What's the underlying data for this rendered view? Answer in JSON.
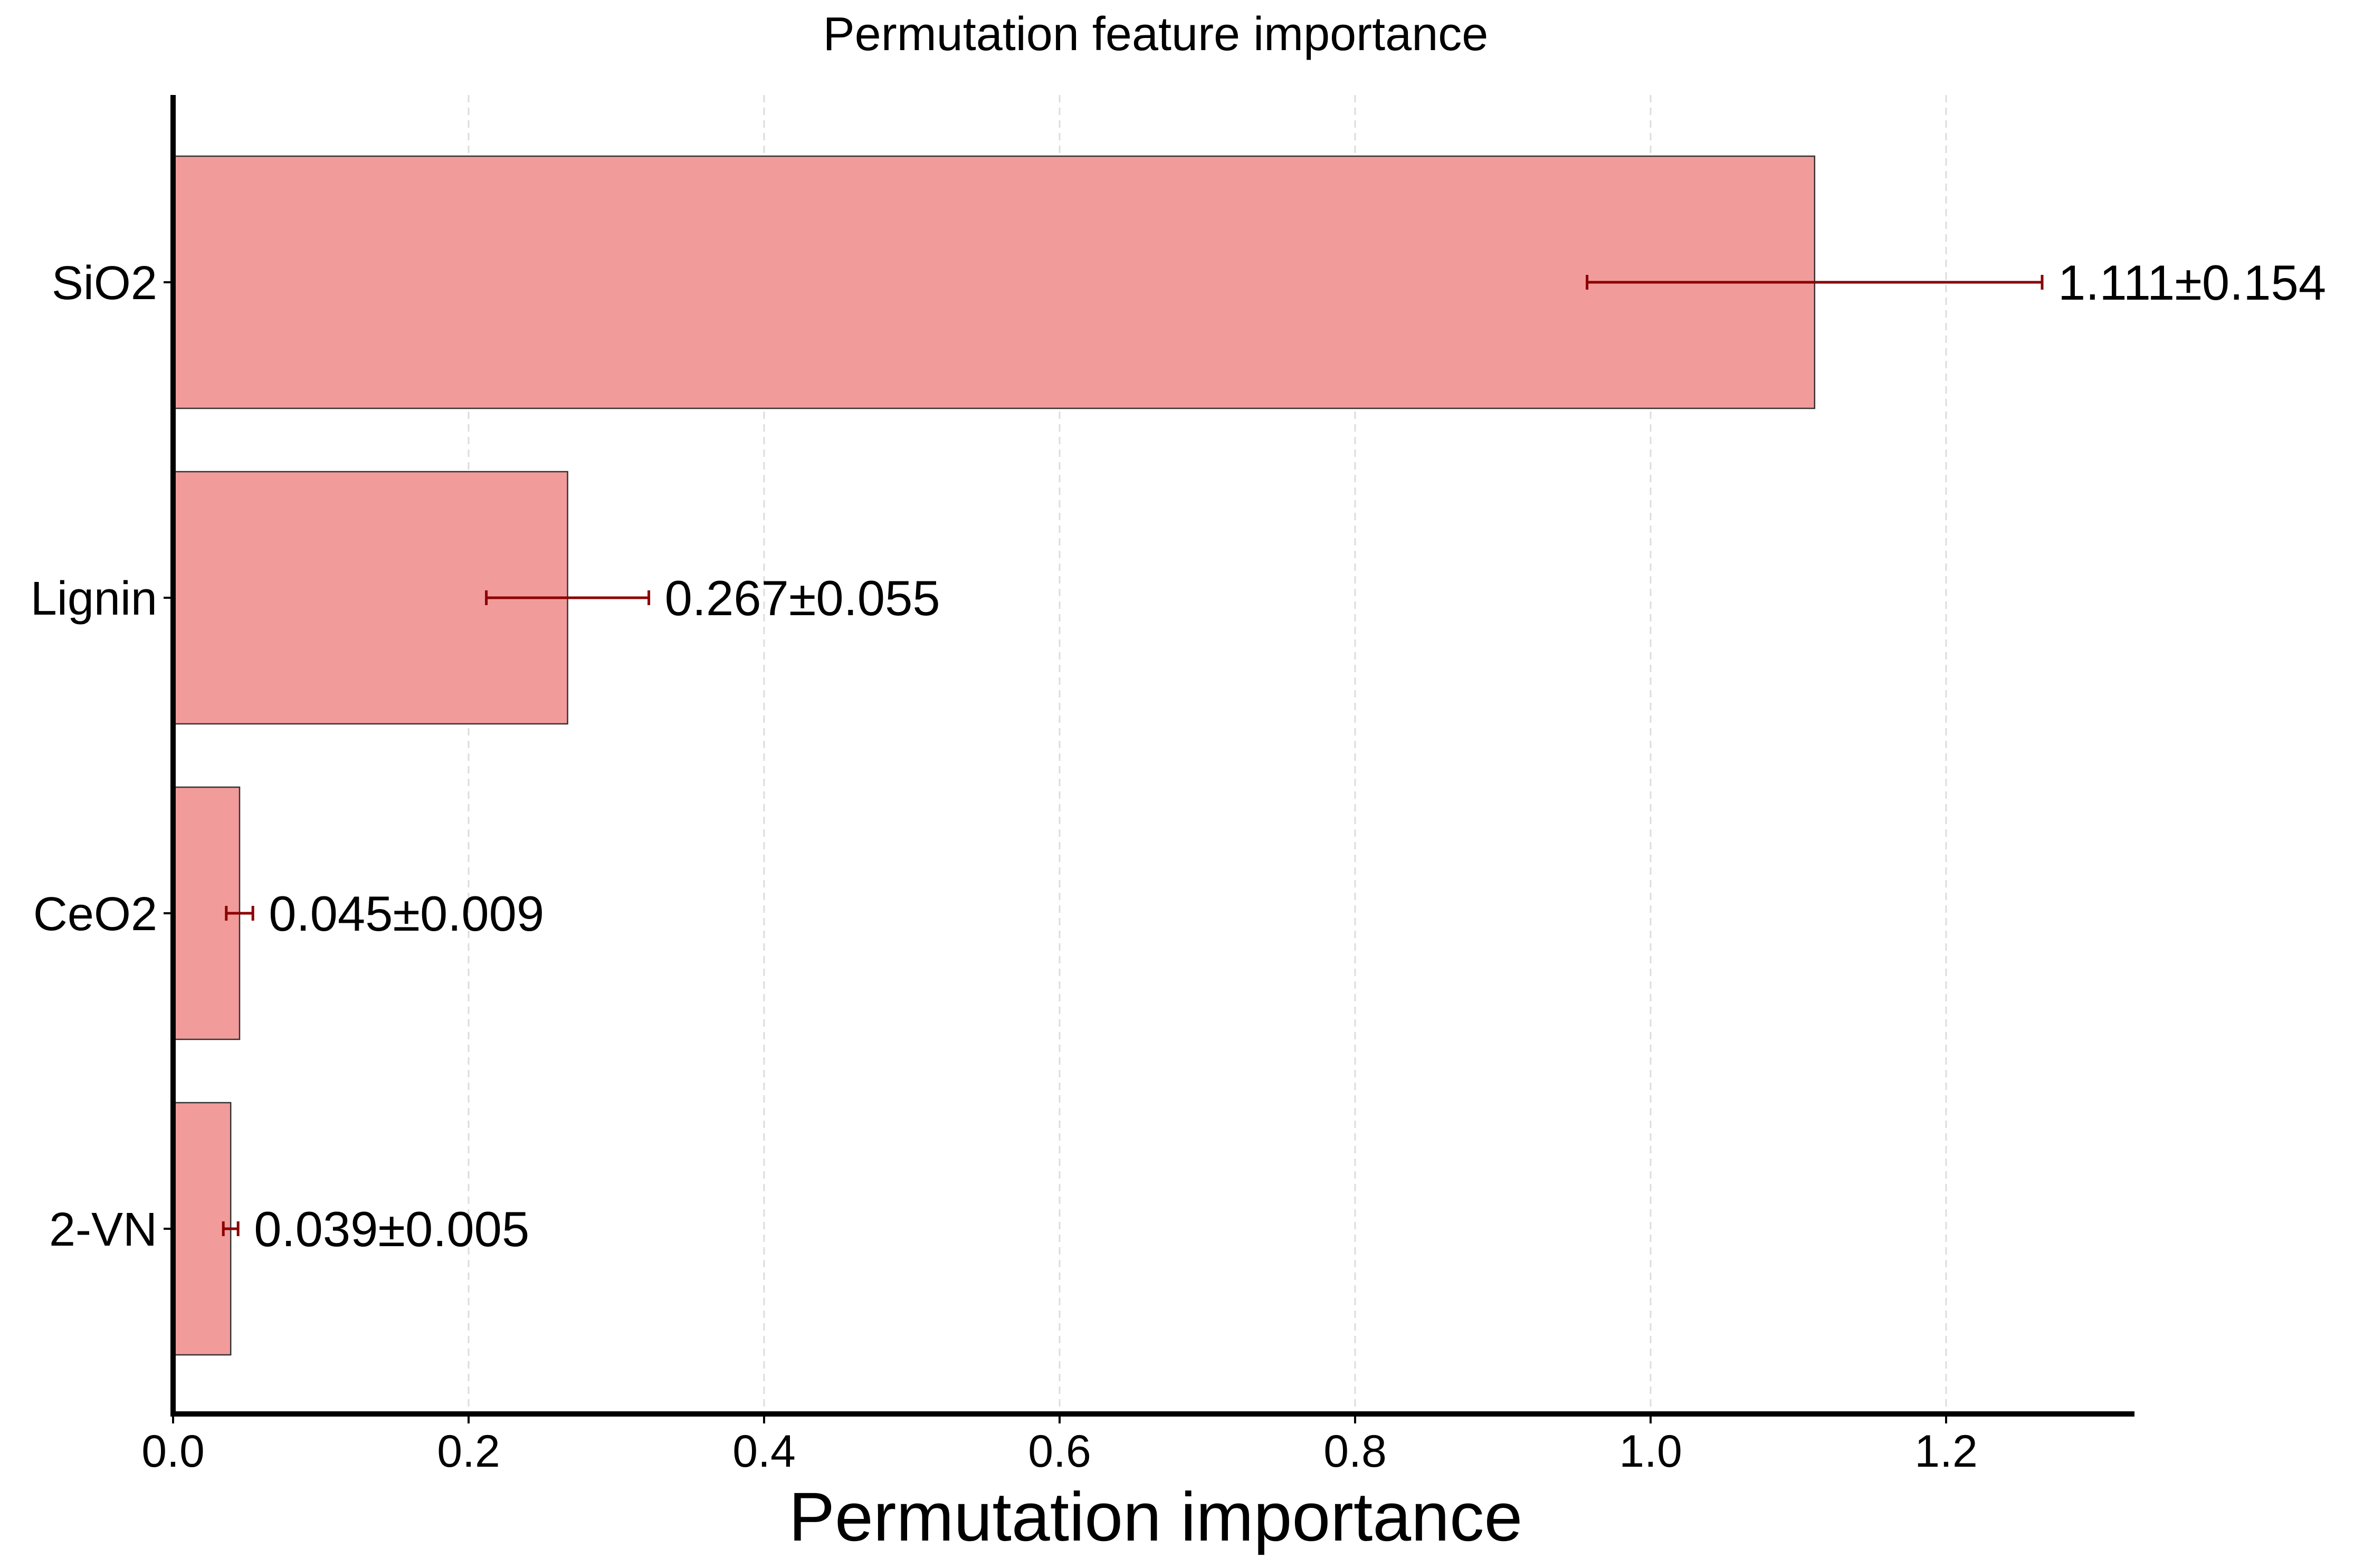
{
  "chart_data": {
    "type": "bar",
    "orientation": "horizontal",
    "title": "Permutation feature importance",
    "xlabel": "Permutation importance",
    "ylabel": "",
    "xlim": [
      0,
      1.33
    ],
    "xticks": [
      0.0,
      0.2,
      0.4,
      0.6,
      0.8,
      1.0,
      1.2
    ],
    "xtick_labels": [
      "0.0",
      "0.2",
      "0.4",
      "0.6",
      "0.8",
      "1.0",
      "1.2"
    ],
    "grid": "vertical dashed",
    "categories": [
      "SiO2",
      "Lignin",
      "CeO2",
      "2-VN"
    ],
    "values": [
      1.111,
      0.267,
      0.045,
      0.039
    ],
    "errors": [
      0.154,
      0.055,
      0.009,
      0.005
    ],
    "labels": [
      "1.111±0.154",
      "0.267±0.055",
      "0.045±0.009",
      "0.039±0.005"
    ],
    "colors": {
      "bar": "#f29b9b",
      "error_bar": "#8b0000"
    }
  }
}
